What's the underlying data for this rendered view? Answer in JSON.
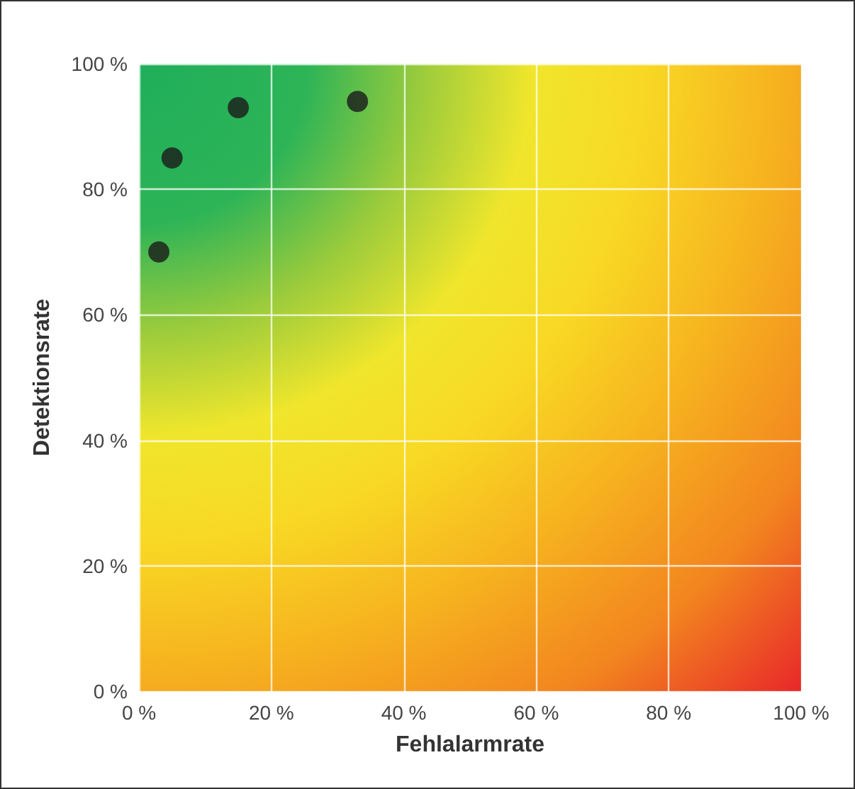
{
  "chart_data": {
    "type": "scatter",
    "xlabel": "Fehlalarmrate",
    "ylabel": "Detektionsrate",
    "x": [
      3,
      5,
      15,
      33
    ],
    "values": [
      70,
      85,
      93,
      94
    ],
    "color": "#1a1a1a",
    "marker": "circle",
    "grid": true,
    "xlim": [
      0,
      100
    ],
    "ylim": [
      0,
      100
    ],
    "xticks": [
      {
        "value": 0,
        "label": "0 %"
      },
      {
        "value": 20,
        "label": "20 %"
      },
      {
        "value": 40,
        "label": "40 %"
      },
      {
        "value": 60,
        "label": "60 %"
      },
      {
        "value": 80,
        "label": "80 %"
      },
      {
        "value": 100,
        "label": "100 %"
      }
    ],
    "yticks": [
      {
        "value": 0,
        "label": "0 %"
      },
      {
        "value": 20,
        "label": "20 %"
      },
      {
        "value": 40,
        "label": "40 %"
      },
      {
        "value": 60,
        "label": "60 %"
      },
      {
        "value": 80,
        "label": "80 %"
      },
      {
        "value": 100,
        "label": "100 %"
      }
    ]
  }
}
